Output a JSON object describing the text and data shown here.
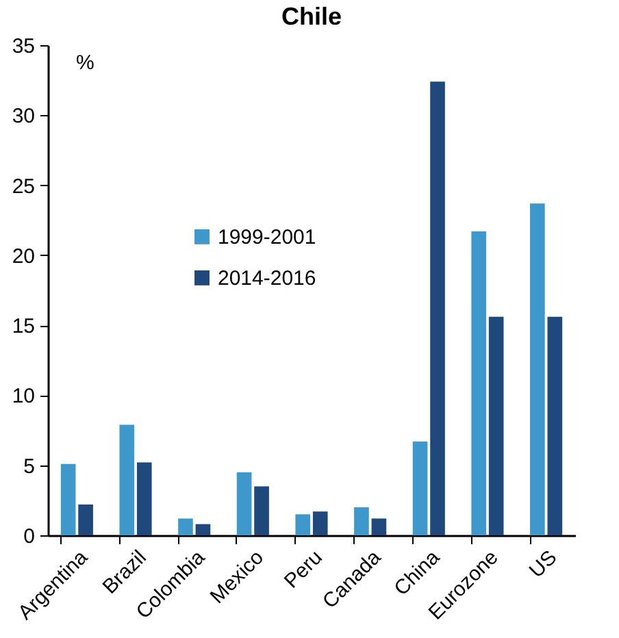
{
  "chart_data": {
    "type": "bar",
    "title": "Chile",
    "ylabel": "%",
    "categories": [
      "Argentina",
      "Brazil",
      "Colombia",
      "Mexico",
      "Peru",
      "Canada",
      "China",
      "Eurozone",
      "US"
    ],
    "series": [
      {
        "name": "1999-2001",
        "color": "#3f98cc",
        "values": [
          5.1,
          7.9,
          1.2,
          4.5,
          1.5,
          2.0,
          6.7,
          21.7,
          23.7
        ]
      },
      {
        "name": "2014-2016",
        "color": "#1f497d",
        "values": [
          2.2,
          5.2,
          0.8,
          3.5,
          1.7,
          1.2,
          32.4,
          15.6,
          15.6
        ]
      }
    ],
    "ylim": [
      0,
      35
    ],
    "yticks": [
      0,
      5,
      10,
      15,
      20,
      25,
      30,
      35
    ],
    "grid": false,
    "legend": "center"
  }
}
